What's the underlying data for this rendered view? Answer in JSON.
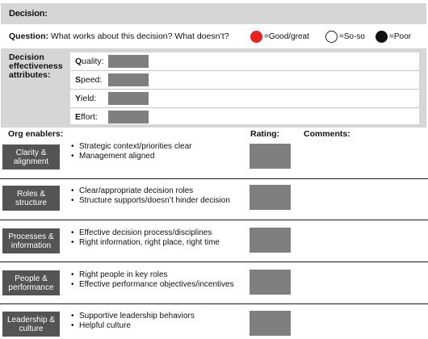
{
  "decision": {
    "label": "Decision:"
  },
  "question": {
    "label": "Question:",
    "text": " What works about this decision? What doesn’t?"
  },
  "legend": [
    {
      "text": "=Good/great",
      "color": "#e8231f"
    },
    {
      "text": "=So-so",
      "color": "#ffffff"
    },
    {
      "text": "=Poor",
      "color": "#111111"
    }
  ],
  "attributes": {
    "title": "Decision effectiveness attributes:",
    "items": [
      {
        "initial": "Q",
        "rest": "uality:"
      },
      {
        "initial": "S",
        "rest": "peed:"
      },
      {
        "initial": "Y",
        "rest": "ield:"
      },
      {
        "initial": "E",
        "rest": "ffort:"
      }
    ]
  },
  "headers": {
    "org_enablers": "Org enablers:",
    "rating": "Rating:",
    "comments": "Comments:"
  },
  "enablers": [
    {
      "name": "Clarity & alignment",
      "bullets": [
        "Strategic context/priorities clear",
        "Management aligned"
      ]
    },
    {
      "name": "Roles & structure",
      "bullets": [
        "Clear/appropriate decision roles",
        "Structure supports/doesn’t hinder decision"
      ]
    },
    {
      "name": "Processes & information",
      "bullets": [
        "Effective decision process/disciplines",
        "Right information, right place, right time"
      ]
    },
    {
      "name": "People & performance",
      "bullets": [
        "Right people in key roles",
        "Effective performance objectives/incentives"
      ]
    },
    {
      "name": "Leadership & culture",
      "bullets": [
        "Supportive leadership behaviors",
        "Helpful culture"
      ]
    }
  ]
}
